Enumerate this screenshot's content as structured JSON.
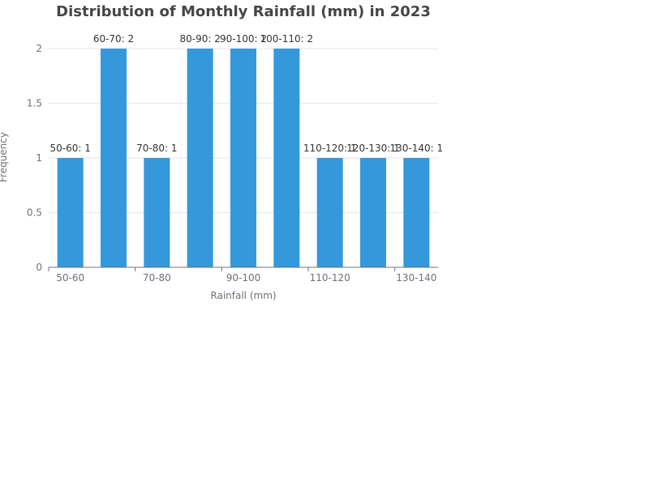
{
  "chart_data": {
    "type": "bar",
    "title": "Distribution of Monthly Rainfall (mm) in 2023",
    "xlabel": "Rainfall (mm)",
    "ylabel": "Frequency",
    "categories": [
      "50-60",
      "60-70",
      "70-80",
      "80-90",
      "90-100",
      "100-110",
      "110-120",
      "120-130",
      "130-140"
    ],
    "visible_x_tick_labels": [
      "50-60",
      "70-80",
      "90-100",
      "110-120",
      "130-140"
    ],
    "values": [
      1,
      2,
      1,
      2,
      2,
      2,
      1,
      1,
      1
    ],
    "data_labels": [
      "50-60: 1",
      "60-70: 2",
      "70-80: 1",
      "80-90: 2",
      "90-100: 2",
      "100-110: 2",
      "110-120: 1",
      "120-130: 1",
      "130-140: 1"
    ],
    "ylim": [
      0,
      2
    ],
    "yticks": [
      0,
      0.5,
      1,
      1.5,
      2
    ],
    "ytick_labels": [
      "0",
      "0.5",
      "1",
      "1.5",
      "2"
    ],
    "grid": true,
    "legend": "none",
    "bar_color": "#3498db"
  }
}
